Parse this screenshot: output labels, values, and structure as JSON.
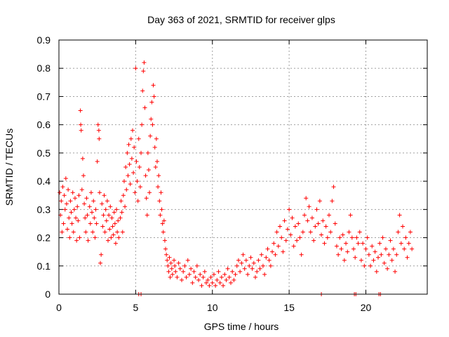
{
  "chart_data": {
    "type": "scatter",
    "title": "Day 363 of 2021, SRMTID for receiver glps",
    "xlabel": "GPS time / hours",
    "ylabel": "SRMTID / TECUs",
    "xlim": [
      0,
      24
    ],
    "ylim": [
      0,
      0.9
    ],
    "x_ticks": [
      0,
      5,
      10,
      15,
      20
    ],
    "y_ticks": [
      0,
      0.1,
      0.2,
      0.3,
      0.4,
      0.5,
      0.6,
      0.7,
      0.8,
      0.9
    ],
    "x_tick_labels": [
      "0",
      "5",
      "10",
      "15",
      "20"
    ],
    "y_tick_labels": [
      "0",
      "0.1",
      "0.2",
      "0.3",
      "0.4",
      "0.5",
      "0.6",
      "0.7",
      "0.8",
      "0.9"
    ],
    "grid": true,
    "marker": "+",
    "color": "#ff0000",
    "series": [
      {
        "name": "SRMTID",
        "points": [
          [
            0.05,
            0.36
          ],
          [
            0.1,
            0.28
          ],
          [
            0.15,
            0.33
          ],
          [
            0.2,
            0.22
          ],
          [
            0.25,
            0.38
          ],
          [
            0.3,
            0.25
          ],
          [
            0.35,
            0.35
          ],
          [
            0.4,
            0.3
          ],
          [
            0.45,
            0.41
          ],
          [
            0.5,
            0.32
          ],
          [
            0.55,
            0.23
          ],
          [
            0.6,
            0.37
          ],
          [
            0.65,
            0.27
          ],
          [
            0.7,
            0.2
          ],
          [
            0.75,
            0.33
          ],
          [
            0.8,
            0.29
          ],
          [
            0.85,
            0.25
          ],
          [
            0.9,
            0.36
          ],
          [
            0.95,
            0.22
          ],
          [
            1.0,
            0.3
          ],
          [
            1.05,
            0.34
          ],
          [
            1.1,
            0.27
          ],
          [
            1.15,
            0.19
          ],
          [
            1.2,
            0.31
          ],
          [
            1.25,
            0.26
          ],
          [
            1.3,
            0.35
          ],
          [
            1.35,
            0.2
          ],
          [
            1.4,
            0.65
          ],
          [
            1.42,
            0.6
          ],
          [
            1.45,
            0.58
          ],
          [
            1.5,
            0.37
          ],
          [
            1.55,
            0.48
          ],
          [
            1.6,
            0.42
          ],
          [
            1.65,
            0.32
          ],
          [
            1.7,
            0.27
          ],
          [
            1.75,
            0.22
          ],
          [
            1.8,
            0.34
          ],
          [
            1.85,
            0.28
          ],
          [
            1.9,
            0.19
          ],
          [
            2.0,
            0.31
          ],
          [
            2.05,
            0.25
          ],
          [
            2.1,
            0.36
          ],
          [
            2.15,
            0.29
          ],
          [
            2.2,
            0.22
          ],
          [
            2.25,
            0.33
          ],
          [
            2.3,
            0.27
          ],
          [
            2.35,
            0.2
          ],
          [
            2.4,
            0.3
          ],
          [
            2.45,
            0.25
          ],
          [
            2.5,
            0.47
          ],
          [
            2.55,
            0.6
          ],
          [
            2.6,
            0.58
          ],
          [
            2.62,
            0.55
          ],
          [
            2.65,
            0.36
          ],
          [
            2.7,
            0.11
          ],
          [
            2.75,
            0.14
          ],
          [
            2.8,
            0.32
          ],
          [
            2.85,
            0.24
          ],
          [
            2.9,
            0.28
          ],
          [
            2.95,
            0.35
          ],
          [
            3.0,
            0.22
          ],
          [
            3.05,
            0.3
          ],
          [
            3.1,
            0.26
          ],
          [
            3.15,
            0.33
          ],
          [
            3.2,
            0.19
          ],
          [
            3.25,
            0.28
          ],
          [
            3.3,
            0.23
          ],
          [
            3.35,
            0.31
          ],
          [
            3.4,
            0.2
          ],
          [
            3.45,
            0.27
          ],
          [
            3.5,
            0.24
          ],
          [
            3.55,
            0.21
          ],
          [
            3.6,
            0.29
          ],
          [
            3.65,
            0.25
          ],
          [
            3.7,
            0.18
          ],
          [
            3.75,
            0.3
          ],
          [
            3.8,
            0.22
          ],
          [
            3.85,
            0.26
          ],
          [
            3.9,
            0.2
          ],
          [
            4.0,
            0.27
          ],
          [
            4.05,
            0.33
          ],
          [
            4.1,
            0.29
          ],
          [
            4.15,
            0.22
          ],
          [
            4.2,
            0.35
          ],
          [
            4.25,
            0.4
          ],
          [
            4.3,
            0.31
          ],
          [
            4.35,
            0.45
          ],
          [
            4.4,
            0.37
          ],
          [
            4.45,
            0.5
          ],
          [
            4.5,
            0.42
          ],
          [
            4.55,
            0.53
          ],
          [
            4.6,
            0.46
          ],
          [
            4.65,
            0.39
          ],
          [
            4.7,
            0.55
          ],
          [
            4.75,
            0.48
          ],
          [
            4.8,
            0.58
          ],
          [
            4.85,
            0.43
          ],
          [
            4.9,
            0.52
          ],
          [
            4.95,
            0.36
          ],
          [
            5.0,
            0.8
          ],
          [
            5.05,
            0.47
          ],
          [
            5.1,
            0.4
          ],
          [
            5.15,
            0.33
          ],
          [
            5.2,
            0.55
          ],
          [
            5.25,
            0.45
          ],
          [
            5.3,
            0.38
          ],
          [
            5.35,
            0.5
          ],
          [
            5.4,
            0.6
          ],
          [
            5.45,
            0.72
          ],
          [
            5.5,
            0.79
          ],
          [
            5.55,
            0.82
          ],
          [
            5.6,
            0.66
          ],
          [
            5.65,
            0.42
          ],
          [
            5.7,
            0.34
          ],
          [
            5.75,
            0.28
          ],
          [
            5.8,
            0.5
          ],
          [
            5.85,
            0.44
          ],
          [
            5.9,
            0.36
          ],
          [
            5.95,
            0.56
          ],
          [
            6.0,
            0.62
          ],
          [
            6.05,
            0.68
          ],
          [
            6.1,
            0.6
          ],
          [
            6.15,
            0.74
          ],
          [
            6.2,
            0.7
          ],
          [
            6.25,
            0.52
          ],
          [
            6.3,
            0.45
          ],
          [
            6.35,
            0.55
          ],
          [
            6.4,
            0.47
          ],
          [
            6.45,
            0.38
          ],
          [
            6.5,
            0.42
          ],
          [
            6.55,
            0.33
          ],
          [
            6.6,
            0.28
          ],
          [
            6.65,
            0.36
          ],
          [
            6.7,
            0.3
          ],
          [
            6.75,
            0.25
          ],
          [
            6.8,
            0.22
          ],
          [
            6.85,
            0.26
          ],
          [
            6.9,
            0.19
          ],
          [
            6.95,
            0.16
          ],
          [
            7.0,
            0.14
          ],
          [
            7.05,
            0.12
          ],
          [
            7.1,
            0.1
          ],
          [
            7.15,
            0.08
          ],
          [
            7.2,
            0.13
          ],
          [
            7.25,
            0.06
          ],
          [
            7.3,
            0.11
          ],
          [
            7.35,
            0.09
          ],
          [
            7.4,
            0.07
          ],
          [
            7.5,
            0.12
          ],
          [
            7.55,
            0.1
          ],
          [
            7.6,
            0.08
          ],
          [
            7.7,
            0.06
          ],
          [
            7.8,
            0.11
          ],
          [
            7.9,
            0.09
          ],
          [
            8.0,
            0.05
          ],
          [
            8.1,
            0.08
          ],
          [
            8.2,
            0.1
          ],
          [
            8.3,
            0.06
          ],
          [
            8.4,
            0.12
          ],
          [
            8.5,
            0.07
          ],
          [
            8.6,
            0.09
          ],
          [
            8.7,
            0.04
          ],
          [
            8.8,
            0.08
          ],
          [
            8.9,
            0.06
          ],
          [
            9.0,
            0.1
          ],
          [
            9.1,
            0.05
          ],
          [
            9.2,
            0.07
          ],
          [
            9.3,
            0.03
          ],
          [
            9.4,
            0.06
          ],
          [
            9.5,
            0.08
          ],
          [
            9.6,
            0.04
          ],
          [
            9.7,
            0.05
          ],
          [
            9.8,
            0.03
          ],
          [
            9.9,
            0.06
          ],
          [
            10.0,
            0.04
          ],
          [
            10.1,
            0.07
          ],
          [
            10.2,
            0.03
          ],
          [
            10.3,
            0.05
          ],
          [
            10.4,
            0.08
          ],
          [
            10.5,
            0.04
          ],
          [
            10.6,
            0.06
          ],
          [
            10.7,
            0.03
          ],
          [
            10.8,
            0.07
          ],
          [
            10.9,
            0.05
          ],
          [
            11.0,
            0.09
          ],
          [
            11.1,
            0.06
          ],
          [
            11.2,
            0.04
          ],
          [
            11.3,
            0.08
          ],
          [
            11.4,
            0.05
          ],
          [
            11.5,
            0.07
          ],
          [
            11.6,
            0.1
          ],
          [
            11.7,
            0.12
          ],
          [
            11.8,
            0.08
          ],
          [
            11.9,
            0.11
          ],
          [
            12.0,
            0.14
          ],
          [
            12.1,
            0.09
          ],
          [
            12.2,
            0.12
          ],
          [
            12.3,
            0.07
          ],
          [
            12.4,
            0.1
          ],
          [
            12.5,
            0.13
          ],
          [
            12.6,
            0.09
          ],
          [
            12.7,
            0.11
          ],
          [
            12.8,
            0.06
          ],
          [
            12.9,
            0.08
          ],
          [
            13.0,
            0.12
          ],
          [
            13.1,
            0.09
          ],
          [
            13.2,
            0.14
          ],
          [
            13.3,
            0.1
          ],
          [
            13.4,
            0.07
          ],
          [
            13.5,
            0.13
          ],
          [
            13.6,
            0.16
          ],
          [
            13.7,
            0.12
          ],
          [
            13.8,
            0.1
          ],
          [
            13.9,
            0.15
          ],
          [
            14.0,
            0.18
          ],
          [
            14.1,
            0.14
          ],
          [
            14.2,
            0.22
          ],
          [
            14.3,
            0.17
          ],
          [
            14.4,
            0.24
          ],
          [
            14.5,
            0.2
          ],
          [
            14.6,
            0.15
          ],
          [
            14.7,
            0.26
          ],
          [
            14.8,
            0.19
          ],
          [
            14.9,
            0.23
          ],
          [
            15.0,
            0.3
          ],
          [
            15.1,
            0.21
          ],
          [
            15.2,
            0.27
          ],
          [
            15.3,
            0.17
          ],
          [
            15.4,
            0.24
          ],
          [
            15.5,
            0.19
          ],
          [
            15.6,
            0.25
          ],
          [
            15.7,
            0.2
          ],
          [
            15.8,
            0.14
          ],
          [
            15.9,
            0.22
          ],
          [
            16.0,
            0.28
          ],
          [
            16.1,
            0.34
          ],
          [
            16.2,
            0.26
          ],
          [
            16.3,
            0.31
          ],
          [
            16.4,
            0.22
          ],
          [
            16.5,
            0.27
          ],
          [
            16.6,
            0.19
          ],
          [
            16.7,
            0.24
          ],
          [
            16.8,
            0.3
          ],
          [
            16.9,
            0.25
          ],
          [
            17.0,
            0.33
          ],
          [
            17.1,
            0.21
          ],
          [
            17.2,
            0.26
          ],
          [
            17.3,
            0.18
          ],
          [
            17.4,
            0.24
          ],
          [
            17.5,
            0.2
          ],
          [
            17.6,
            0.28
          ],
          [
            17.7,
            0.22
          ],
          [
            17.8,
            0.33
          ],
          [
            17.9,
            0.38
          ],
          [
            18.0,
            0.25
          ],
          [
            18.1,
            0.17
          ],
          [
            18.2,
            0.14
          ],
          [
            18.3,
            0.2
          ],
          [
            18.4,
            0.16
          ],
          [
            18.5,
            0.21
          ],
          [
            18.6,
            0.12
          ],
          [
            18.7,
            0.18
          ],
          [
            18.8,
            0.15
          ],
          [
            18.9,
            0.22
          ],
          [
            19.0,
            0.28
          ],
          [
            19.1,
            0.2
          ],
          [
            19.2,
            0.16
          ],
          [
            19.3,
            0.13
          ],
          [
            19.4,
            0.2
          ],
          [
            19.5,
            0.18
          ],
          [
            19.6,
            0.22
          ],
          [
            19.7,
            0.12
          ],
          [
            19.8,
            0.18
          ],
          [
            19.9,
            0.1
          ],
          [
            20.0,
            0.16
          ],
          [
            20.1,
            0.2
          ],
          [
            20.2,
            0.14
          ],
          [
            20.3,
            0.1
          ],
          [
            20.4,
            0.17
          ],
          [
            20.5,
            0.12
          ],
          [
            20.6,
            0.15
          ],
          [
            20.7,
            0.08
          ],
          [
            20.8,
            0.13
          ],
          [
            20.9,
            0.18
          ],
          [
            21.0,
            0.14
          ],
          [
            21.1,
            0.2
          ],
          [
            21.2,
            0.11
          ],
          [
            21.3,
            0.16
          ],
          [
            21.4,
            0.09
          ],
          [
            21.5,
            0.14
          ],
          [
            21.6,
            0.19
          ],
          [
            21.7,
            0.12
          ],
          [
            21.8,
            0.16
          ],
          [
            21.9,
            0.08
          ],
          [
            22.0,
            0.14
          ],
          [
            22.1,
            0.22
          ],
          [
            22.2,
            0.28
          ],
          [
            22.3,
            0.18
          ],
          [
            22.4,
            0.24
          ],
          [
            22.5,
            0.16
          ],
          [
            22.6,
            0.2
          ],
          [
            22.7,
            0.13
          ],
          [
            22.8,
            0.18
          ],
          [
            22.9,
            0.22
          ],
          [
            23.0,
            0.16
          ],
          [
            5.2,
            0.0
          ],
          [
            5.35,
            0.0
          ],
          [
            17.1,
            0.0
          ],
          [
            19.25,
            0.0
          ],
          [
            19.35,
            0.0
          ],
          [
            20.85,
            0.0
          ],
          [
            20.95,
            0.0
          ]
        ]
      }
    ]
  }
}
